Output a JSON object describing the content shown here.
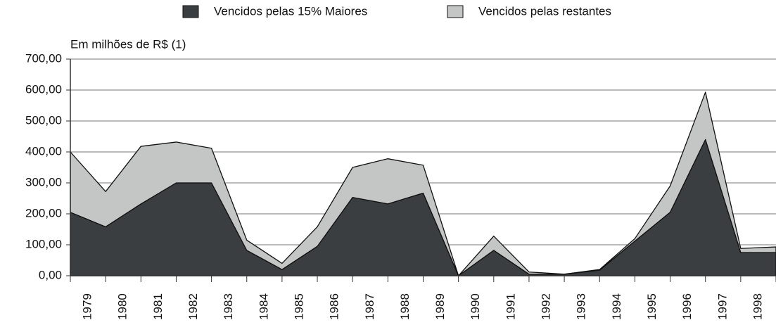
{
  "chart_data": {
    "type": "stacked_area",
    "axis_label": "Em milhões de R$ (1)",
    "categories": [
      "1979",
      "1980",
      "1981",
      "1982",
      "1983",
      "1984",
      "1985",
      "1986",
      "1987",
      "1988",
      "1989",
      "1990",
      "1991",
      "1992",
      "1993",
      "1994",
      "1995",
      "1996",
      "1997",
      "1998",
      null
    ],
    "series": [
      {
        "name": "Vencidos pelas 15% Maiores",
        "color": "#3b3e40",
        "values": [
          205,
          158,
          232,
          300,
          300,
          82,
          20,
          95,
          253,
          232,
          267,
          0,
          82,
          5,
          5,
          18,
          112,
          205,
          440,
          75,
          75
        ]
      },
      {
        "name": "Vencidos pelas restantes",
        "color": "#c4c5c5",
        "values": [
          195,
          114,
          186,
          132,
          112,
          33,
          20,
          63,
          97,
          146,
          90,
          0,
          46,
          7,
          0,
          2,
          8,
          85,
          153,
          13,
          18
        ]
      }
    ],
    "ylim": [
      0,
      700
    ],
    "yticks": [
      {
        "value": 0,
        "label": "0,00"
      },
      {
        "value": 100,
        "label": "100,00"
      },
      {
        "value": 200,
        "label": "200,00"
      },
      {
        "value": 300,
        "label": "300,00"
      },
      {
        "value": 400,
        "label": "400,00"
      },
      {
        "value": 500,
        "label": "500,00"
      },
      {
        "value": 600,
        "label": "600,00"
      },
      {
        "value": 700,
        "label": "700,00"
      }
    ],
    "grid": true
  }
}
